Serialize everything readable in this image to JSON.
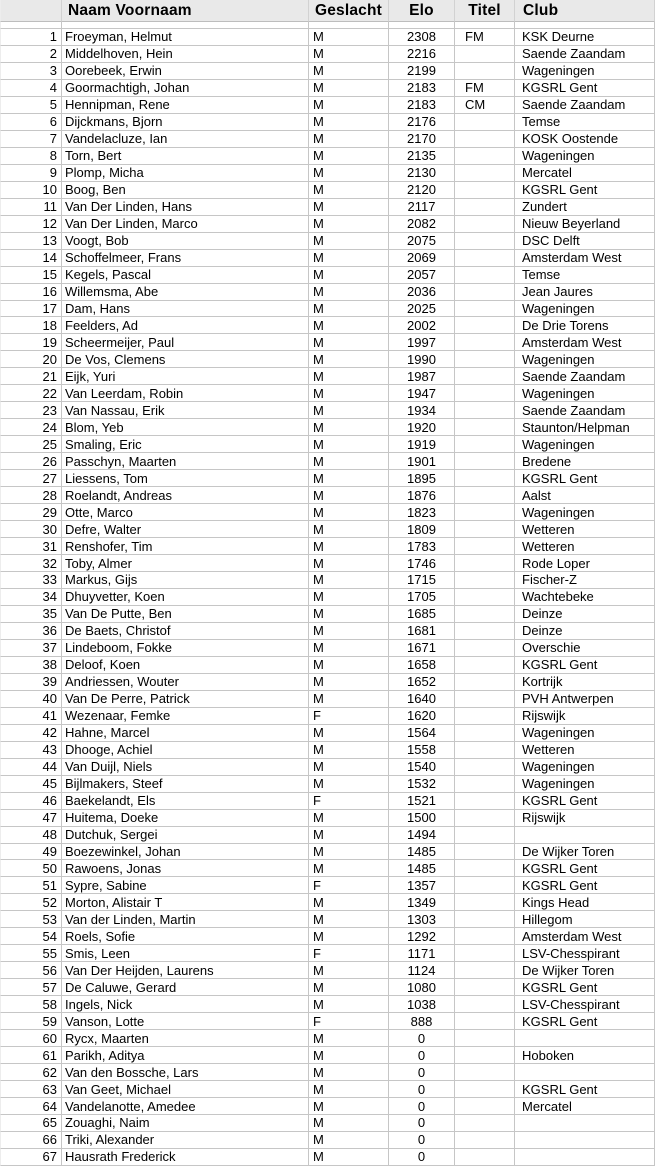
{
  "table": {
    "columns": [
      {
        "key": "rank",
        "label": ""
      },
      {
        "key": "name",
        "label": "Naam Voornaam"
      },
      {
        "key": "gender",
        "label": "Geslacht"
      },
      {
        "key": "elo",
        "label": "Elo"
      },
      {
        "key": "title",
        "label": "Titel"
      },
      {
        "key": "club",
        "label": "Club"
      }
    ],
    "rows": [
      [
        1,
        "Froeyman, Helmut",
        "M",
        2308,
        "FM",
        "KSK Deurne"
      ],
      [
        2,
        "Middelhoven, Hein",
        "M",
        2216,
        "",
        "Saende Zaandam"
      ],
      [
        3,
        "Oorebeek, Erwin",
        "M",
        2199,
        "",
        "Wageningen"
      ],
      [
        4,
        "Goormachtigh, Johan",
        "M",
        2183,
        "FM",
        "KGSRL Gent"
      ],
      [
        5,
        "Hennipman, Rene",
        "M",
        2183,
        "CM",
        "Saende Zaandam"
      ],
      [
        6,
        "Dijckmans, Bjorn",
        "M",
        2176,
        "",
        "Temse"
      ],
      [
        7,
        "Vandelacluze, Ian",
        "M",
        2170,
        "",
        "KOSK Oostende"
      ],
      [
        8,
        "Torn, Bert",
        "M",
        2135,
        "",
        "Wageningen"
      ],
      [
        9,
        "Plomp, Micha",
        "M",
        2130,
        "",
        "Mercatel"
      ],
      [
        10,
        "Boog, Ben",
        "M",
        2120,
        "",
        "KGSRL Gent"
      ],
      [
        11,
        "Van Der Linden, Hans",
        "M",
        2117,
        "",
        "Zundert"
      ],
      [
        12,
        "Van Der Linden, Marco",
        "M",
        2082,
        "",
        "Nieuw Beyerland"
      ],
      [
        13,
        "Voogt, Bob",
        "M",
        2075,
        "",
        "DSC Delft"
      ],
      [
        14,
        "Schoffelmeer, Frans",
        "M",
        2069,
        "",
        "Amsterdam West"
      ],
      [
        15,
        "Kegels, Pascal",
        "M",
        2057,
        "",
        "Temse"
      ],
      [
        16,
        "Willemsma, Abe",
        "M",
        2036,
        "",
        "Jean Jaures"
      ],
      [
        17,
        "Dam, Hans",
        "M",
        2025,
        "",
        "Wageningen"
      ],
      [
        18,
        "Feelders, Ad",
        "M",
        2002,
        "",
        "De Drie Torens"
      ],
      [
        19,
        "Scheermeijer, Paul",
        "M",
        1997,
        "",
        "Amsterdam West"
      ],
      [
        20,
        "De Vos, Clemens",
        "M",
        1990,
        "",
        "Wageningen"
      ],
      [
        21,
        "Eijk, Yuri",
        "M",
        1987,
        "",
        "Saende Zaandam"
      ],
      [
        22,
        "Van Leerdam, Robin",
        "M",
        1947,
        "",
        "Wageningen"
      ],
      [
        23,
        "Van Nassau, Erik",
        "M",
        1934,
        "",
        "Saende Zaandam"
      ],
      [
        24,
        "Blom, Yeb",
        "M",
        1920,
        "",
        "Staunton/Helpman"
      ],
      [
        25,
        "Smaling, Eric",
        "M",
        1919,
        "",
        "Wageningen"
      ],
      [
        26,
        "Passchyn, Maarten",
        "M",
        1901,
        "",
        "Bredene"
      ],
      [
        27,
        "Liessens, Tom",
        "M",
        1895,
        "",
        "KGSRL Gent"
      ],
      [
        28,
        "Roelandt, Andreas",
        "M",
        1876,
        "",
        "Aalst"
      ],
      [
        29,
        "Otte, Marco",
        "M",
        1823,
        "",
        "Wageningen"
      ],
      [
        30,
        "Defre, Walter",
        "M",
        1809,
        "",
        "Wetteren"
      ],
      [
        31,
        "Renshofer, Tim",
        "M",
        1783,
        "",
        "Wetteren"
      ],
      [
        32,
        "Toby, Almer",
        "M",
        1746,
        "",
        "Rode Loper"
      ],
      [
        33,
        "Markus, Gijs",
        "M",
        1715,
        "",
        "Fischer-Z"
      ],
      [
        34,
        "Dhuyvetter, Koen",
        "M",
        1705,
        "",
        "Wachtebeke"
      ],
      [
        35,
        "Van De Putte, Ben",
        "M",
        1685,
        "",
        "Deinze"
      ],
      [
        36,
        "De Baets, Christof",
        "M",
        1681,
        "",
        "Deinze"
      ],
      [
        37,
        "Lindeboom, Fokke",
        "M",
        1671,
        "",
        "Overschie"
      ],
      [
        38,
        "Deloof, Koen",
        "M",
        1658,
        "",
        "KGSRL Gent"
      ],
      [
        39,
        "Andriessen, Wouter",
        "M",
        1652,
        "",
        "Kortrijk"
      ],
      [
        40,
        "Van De Perre, Patrick",
        "M",
        1640,
        "",
        "PVH Antwerpen"
      ],
      [
        41,
        "Wezenaar, Femke",
        "F",
        1620,
        "",
        "Rijswijk"
      ],
      [
        42,
        "Hahne, Marcel",
        "M",
        1564,
        "",
        "Wageningen"
      ],
      [
        43,
        "Dhooge, Achiel",
        "M",
        1558,
        "",
        "Wetteren"
      ],
      [
        44,
        "Van Duijl, Niels",
        "M",
        1540,
        "",
        "Wageningen"
      ],
      [
        45,
        "Bijlmakers, Steef",
        "M",
        1532,
        "",
        "Wageningen"
      ],
      [
        46,
        "Baekelandt, Els",
        "F",
        1521,
        "",
        "KGSRL Gent"
      ],
      [
        47,
        "Huitema, Doeke",
        "M",
        1500,
        "",
        "Rijswijk"
      ],
      [
        48,
        "Dutchuk, Sergei",
        "M",
        1494,
        "",
        ""
      ],
      [
        49,
        "Boezewinkel, Johan",
        "M",
        1485,
        "",
        "De Wijker Toren"
      ],
      [
        50,
        "Rawoens, Jonas",
        "M",
        1485,
        "",
        "KGSRL Gent"
      ],
      [
        51,
        "Sypre, Sabine",
        "F",
        1357,
        "",
        "KGSRL Gent"
      ],
      [
        52,
        "Morton, Alistair T",
        "M",
        1349,
        "",
        "Kings Head"
      ],
      [
        53,
        "Van der Linden, Martin",
        "M",
        1303,
        "",
        "Hillegom"
      ],
      [
        54,
        "Roels, Sofie",
        "M",
        1292,
        "",
        "Amsterdam West"
      ],
      [
        55,
        "Smis, Leen",
        "F",
        1171,
        "",
        "LSV-Chesspirant"
      ],
      [
        56,
        "Van Der Heijden, Laurens",
        "M",
        1124,
        "",
        "De Wijker Toren"
      ],
      [
        57,
        "De Caluwe, Gerard",
        "M",
        1080,
        "",
        "KGSRL Gent"
      ],
      [
        58,
        "Ingels, Nick",
        "M",
        1038,
        "",
        "LSV-Chesspirant"
      ],
      [
        59,
        "Vanson, Lotte",
        "F",
        888,
        "",
        "KGSRL Gent"
      ],
      [
        60,
        "Rycx, Maarten",
        "M",
        0,
        "",
        ""
      ],
      [
        61,
        "Parikh, Aditya",
        "M",
        0,
        "",
        "Hoboken"
      ],
      [
        62,
        "Van den Bossche, Lars",
        "M",
        0,
        "",
        ""
      ],
      [
        63,
        "Van Geet, Michael",
        "M",
        0,
        "",
        "KGSRL Gent"
      ],
      [
        64,
        "Vandelanotte, Amedee",
        "M",
        0,
        "",
        "Mercatel"
      ],
      [
        65,
        "Zouaghi, Naim",
        "M",
        0,
        "",
        ""
      ],
      [
        66,
        "Triki, Alexander",
        "M",
        0,
        "",
        ""
      ],
      [
        67,
        "Hausrath Frederick",
        "M",
        0,
        "",
        ""
      ]
    ]
  },
  "colors": {
    "header_bg": "#e9e9e9",
    "gridline": "#c6c6c6",
    "row_bg": "#ffffff",
    "text": "#000000"
  }
}
